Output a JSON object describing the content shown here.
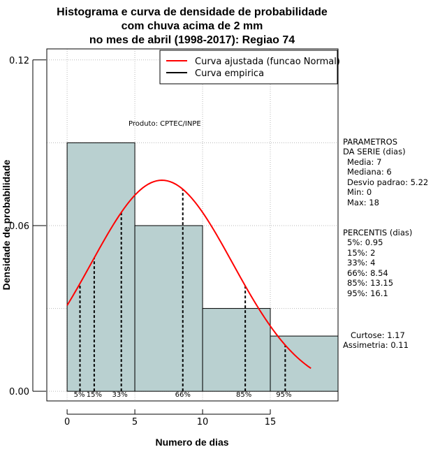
{
  "chart_data": {
    "type": "bar",
    "title": [
      "Histograma e curva de densidade de probabilidade",
      "com chuva acima de 2 mm",
      "no mes de abril (1998-2017): Regiao 74"
    ],
    "xlabel": "Numero de dias",
    "ylabel": "Densidade de probabilidade",
    "xlim": [
      -1.5,
      20
    ],
    "ylim": [
      -0.0035,
      0.124
    ],
    "xticks": [
      0,
      5,
      10,
      15
    ],
    "xtick_labels": [
      "0",
      "5",
      "10",
      "15"
    ],
    "yticks": [
      0.0,
      0.06,
      0.12
    ],
    "ytick_labels": [
      "0.00",
      "0.06",
      "0.12"
    ],
    "grid": true,
    "legend_position": "top-right",
    "histogram": {
      "bins": [
        [
          0,
          5
        ],
        [
          5,
          10
        ],
        [
          10,
          15
        ],
        [
          15,
          20
        ]
      ],
      "density": [
        0.09,
        0.06,
        0.03,
        0.02
      ],
      "color": "#b9d0d0"
    },
    "series": [
      {
        "name": "Curva ajustada (funcao Normal)",
        "color": "#ff0000",
        "type": "normal_curve",
        "mean": 7,
        "sd": 5.22,
        "x_range": [
          0,
          18
        ]
      },
      {
        "name": "Curva empirica",
        "color": "#000000",
        "type": "line",
        "x": [],
        "y": []
      }
    ],
    "percentiles": [
      {
        "label": "5%",
        "value": 0.95
      },
      {
        "label": "15%",
        "value": 2
      },
      {
        "label": "33%",
        "value": 4
      },
      {
        "label": "66%",
        "value": 8.54
      },
      {
        "label": "85%",
        "value": 13.15
      },
      {
        "label": "95%",
        "value": 16.1
      }
    ],
    "annotations": {
      "produto": "Produto: CPTEC/INPE"
    },
    "side_panel": {
      "parametros": [
        "PARAMETROS",
        "DA SERIE (dias)",
        "Media: 7",
        "Mediana: 6",
        "Desvio padrao: 5.22",
        "Min: 0",
        "Max: 18"
      ],
      "percentis": [
        "PERCENTIS (dias)",
        "5%: 0.95",
        "15%: 2",
        "33%: 4",
        "66%: 8.54",
        "85%: 13.15",
        "95%: 16.1"
      ],
      "stats": [
        "Curtose: 1.17",
        "Assimetria: 0.11"
      ]
    }
  }
}
